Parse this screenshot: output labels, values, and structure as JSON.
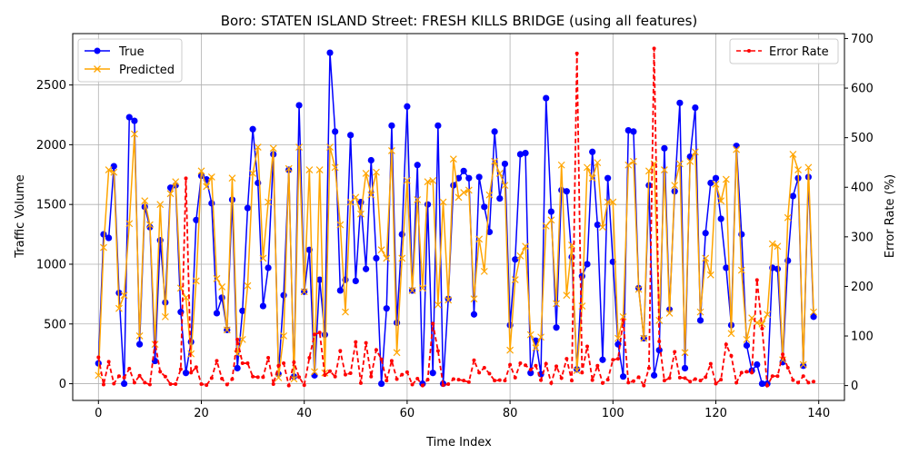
{
  "chart_data": {
    "type": "line",
    "title": "Boro: STATEN ISLAND Street: FRESH KILLS BRIDGE (using all features)",
    "xlabel": "Time Index",
    "ylabel": "Traffic Volume",
    "y2label": "Error Rate (%)",
    "xlim": [
      -5,
      145
    ],
    "ylim": [
      -140,
      2930
    ],
    "y2lim": [
      -30,
      710
    ],
    "x_ticks": [
      0,
      20,
      40,
      60,
      80,
      100,
      120,
      140
    ],
    "y_ticks": [
      0,
      500,
      1000,
      1500,
      2000,
      2500
    ],
    "y2_ticks": [
      0,
      100,
      200,
      300,
      400,
      500,
      600,
      700
    ],
    "grid": true,
    "legend_left_position": "upper-left",
    "legend_right_position": "upper-right",
    "colors": {
      "true": "#0000ff",
      "predicted": "#ffa500",
      "error": "#ff0000"
    },
    "series": [
      {
        "name": "True",
        "axis": "left",
        "marker": "circle",
        "values": [
          170,
          1250,
          1220,
          1820,
          760,
          0,
          2230,
          2200,
          330,
          1480,
          1310,
          190,
          1200,
          680,
          1640,
          1660,
          600,
          90,
          350,
          1370,
          1740,
          1710,
          1510,
          590,
          720,
          450,
          1540,
          130,
          610,
          1470,
          2130,
          1680,
          650,
          970,
          1920,
          80,
          740,
          1790,
          60,
          2330,
          770,
          1120,
          70,
          870,
          410,
          2770,
          2110,
          780,
          870,
          2080,
          860,
          1520,
          960,
          1870,
          1050,
          0,
          630,
          2160,
          510,
          1250,
          2320,
          780,
          1830,
          0,
          1500,
          90,
          2160,
          0,
          710,
          1660,
          1720,
          1780,
          1720,
          580,
          1730,
          1480,
          1270,
          2110,
          1550,
          1840,
          490,
          1040,
          1920,
          1930,
          90,
          360,
          80,
          2390,
          1440,
          470,
          1620,
          1610,
          1060,
          120,
          900,
          1000,
          1940,
          1330,
          200,
          1720,
          1020,
          330,
          60,
          2120,
          2110,
          800,
          380,
          1660,
          70,
          280,
          1970,
          620,
          1610,
          2350,
          130,
          1900,
          2310,
          530,
          1260,
          1680,
          1720,
          1380,
          970,
          490,
          1990,
          1250,
          320,
          110,
          160,
          0,
          0,
          970,
          960,
          180,
          1030,
          1570,
          1720,
          150,
          1730,
          560
        ]
      },
      {
        "name": "Predicted",
        "axis": "left",
        "marker": "x",
        "values": [
          70,
          1140,
          1790,
          1770,
          630,
          740,
          1340,
          2090,
          400,
          1530,
          1330,
          330,
          1500,
          560,
          1590,
          1690,
          800,
          720,
          250,
          860,
          1780,
          1650,
          1730,
          880,
          810,
          450,
          1720,
          250,
          370,
          820,
          1760,
          1980,
          1050,
          1520,
          1970,
          50,
          400,
          1800,
          40,
          1980,
          770,
          1790,
          100,
          1790,
          90,
          1980,
          1810,
          1330,
          600,
          1520,
          1560,
          1420,
          1760,
          1580,
          1770,
          1120,
          1050,
          1950,
          260,
          1050,
          1700,
          780,
          1540,
          800,
          1690,
          1700,
          660,
          1520,
          700,
          1880,
          1560,
          1600,
          1620,
          710,
          1210,
          940,
          1580,
          1860,
          1760,
          1660,
          280,
          870,
          1070,
          1150,
          410,
          300,
          390,
          1320,
          1370,
          670,
          1830,
          740,
          1160,
          110,
          650,
          1810,
          1720,
          1850,
          1310,
          1520,
          1520,
          380,
          560,
          1830,
          1860,
          790,
          380,
          1780,
          1840,
          530,
          1790,
          590,
          1660,
          1840,
          260,
          1860,
          1940,
          600,
          1050,
          910,
          1670,
          1530,
          1710,
          420,
          1960,
          950,
          370,
          550,
          510,
          500,
          580,
          1170,
          1150,
          200,
          1390,
          1920,
          1790,
          160,
          1810,
          600
        ]
      },
      {
        "name": "Error Rate",
        "axis": "right",
        "marker": "dot",
        "values": [
          57,
          2,
          48,
          4,
          19,
          16,
          34,
          6,
          20,
          6,
          2,
          87,
          28,
          18,
          3,
          3,
          33,
          418,
          26,
          37,
          3,
          1,
          15,
          50,
          14,
          2,
          13,
          93,
          45,
          45,
          18,
          17,
          17,
          56,
          3,
          40,
          45,
          0,
          47,
          17,
          1,
          56,
          103,
          107,
          21,
          29,
          18,
          70,
          22,
          25,
          88,
          5,
          86,
          18,
          72,
          53,
          10,
          50,
          13,
          22,
          27,
          2,
          14,
          0,
          12,
          125,
          70,
          1,
          3,
          13,
          12,
          10,
          7,
          51,
          26,
          36,
          24,
          10,
          11,
          10,
          42,
          16,
          45,
          41,
          32,
          40,
          11,
          44,
          5,
          39,
          15,
          54,
          10,
          670,
          26,
          79,
          11,
          40,
          5,
          12,
          52,
          54,
          132,
          6,
          9,
          17,
          0,
          35,
          680,
          89,
          10,
          15,
          68,
          16,
          15,
          8,
          13,
          10,
          17,
          44,
          4,
          12,
          83,
          60,
          6,
          26,
          28,
          26,
          213,
          115,
          0,
          19,
          19,
          63,
          36,
          11,
          6,
          19,
          6,
          8
        ]
      }
    ]
  }
}
